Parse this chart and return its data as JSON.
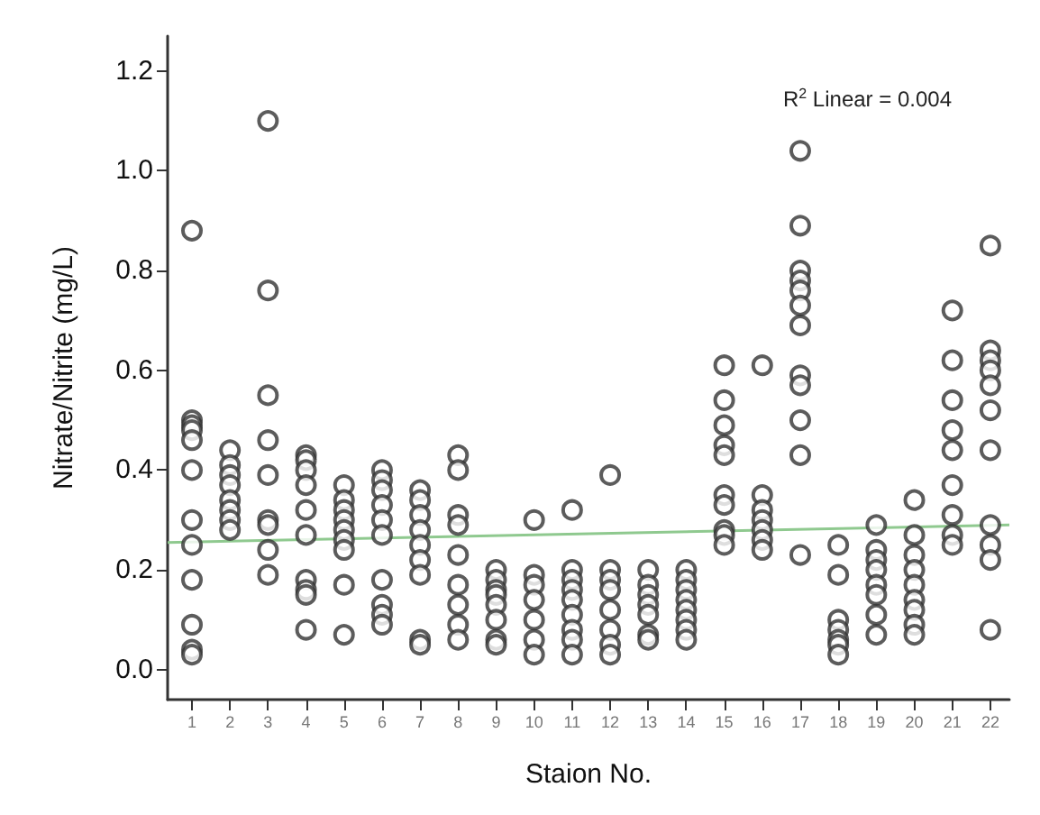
{
  "chart_data": {
    "type": "scatter",
    "xlabel": "Staion No.",
    "ylabel": "Nitrate/Nitrite (mg/L)",
    "annotations": [
      "R$^{2}$ Linear = 0.004"
    ],
    "xlim": [
      0.36,
      22.5
    ],
    "xticks": [
      1,
      2,
      3,
      4,
      5,
      6,
      7,
      8,
      9,
      10,
      11,
      12,
      13,
      14,
      15,
      16,
      17,
      18,
      19,
      20,
      21,
      22
    ],
    "ylim": [
      -0.06,
      1.27
    ],
    "yticks": [
      {
        "value": 0,
        "label": "0.0"
      },
      {
        "value": 0.2,
        "label": "0.2"
      },
      {
        "value": 0.4,
        "label": "0.4"
      },
      {
        "value": 0.6,
        "label": "0.6"
      },
      {
        "value": 0.8,
        "label": "0.8"
      },
      {
        "value": 1,
        "label": "1.0"
      },
      {
        "value": 1.2,
        "label": "1.2"
      }
    ],
    "marker": "circle",
    "series": [
      {
        "color": "#333333",
        "x": [
          1,
          1,
          1,
          1,
          1,
          1,
          1,
          1,
          1,
          1,
          1,
          1,
          2,
          2,
          2,
          2,
          2,
          2,
          2,
          2,
          3,
          3,
          3,
          3,
          3,
          3,
          3,
          3,
          3,
          4,
          4,
          4,
          4,
          4,
          4,
          4,
          4,
          4,
          4,
          5,
          5,
          5,
          5,
          5,
          5,
          5,
          5,
          5,
          6,
          6,
          6,
          6,
          6,
          6,
          6,
          6,
          6,
          6,
          7,
          7,
          7,
          7,
          7,
          7,
          7,
          7,
          7,
          8,
          8,
          8,
          8,
          8,
          8,
          8,
          8,
          8,
          9,
          9,
          9,
          9,
          9,
          9,
          9,
          9,
          10,
          10,
          10,
          10,
          10,
          10,
          10,
          11,
          11,
          11,
          11,
          11,
          11,
          11,
          11,
          11,
          12,
          12,
          12,
          12,
          12,
          12,
          12,
          12,
          13,
          13,
          13,
          13,
          13,
          13,
          13,
          14,
          14,
          14,
          14,
          14,
          14,
          14,
          14,
          15,
          15,
          15,
          15,
          15,
          15,
          15,
          15,
          15,
          15,
          16,
          16,
          16,
          16,
          16,
          16,
          16,
          17,
          17,
          17,
          17,
          17,
          17,
          17,
          17,
          17,
          17,
          17,
          17,
          18,
          18,
          18,
          18,
          18,
          18,
          18,
          19,
          19,
          19,
          19,
          19,
          19,
          19,
          19,
          20,
          20,
          20,
          20,
          20,
          20,
          20,
          20,
          20,
          21,
          21,
          21,
          21,
          21,
          21,
          21,
          21,
          21,
          22,
          22,
          22,
          22,
          22,
          22,
          22,
          22,
          22,
          22,
          22
        ],
        "values": [
          0.88,
          0.5,
          0.49,
          0.48,
          0.46,
          0.4,
          0.3,
          0.25,
          0.18,
          0.09,
          0.04,
          0.03,
          0.44,
          0.41,
          0.39,
          0.37,
          0.34,
          0.32,
          0.3,
          0.28,
          1.1,
          0.76,
          0.55,
          0.46,
          0.39,
          0.3,
          0.29,
          0.24,
          0.19,
          0.43,
          0.42,
          0.4,
          0.37,
          0.32,
          0.27,
          0.18,
          0.16,
          0.15,
          0.08,
          0.37,
          0.34,
          0.32,
          0.3,
          0.28,
          0.26,
          0.24,
          0.17,
          0.07,
          0.4,
          0.38,
          0.36,
          0.33,
          0.3,
          0.27,
          0.18,
          0.13,
          0.11,
          0.09,
          0.36,
          0.34,
          0.31,
          0.28,
          0.25,
          0.22,
          0.19,
          0.06,
          0.05,
          0.43,
          0.4,
          0.31,
          0.29,
          0.23,
          0.17,
          0.13,
          0.09,
          0.06,
          0.2,
          0.18,
          0.16,
          0.15,
          0.13,
          0.1,
          0.06,
          0.05,
          0.3,
          0.19,
          0.17,
          0.14,
          0.1,
          0.06,
          0.03,
          0.32,
          0.2,
          0.18,
          0.16,
          0.14,
          0.11,
          0.08,
          0.06,
          0.03,
          0.39,
          0.2,
          0.18,
          0.16,
          0.12,
          0.08,
          0.05,
          0.03,
          0.2,
          0.17,
          0.15,
          0.13,
          0.11,
          0.07,
          0.06,
          0.2,
          0.18,
          0.16,
          0.14,
          0.12,
          0.1,
          0.08,
          0.06,
          0.61,
          0.54,
          0.49,
          0.45,
          0.43,
          0.35,
          0.33,
          0.28,
          0.27,
          0.25,
          0.61,
          0.35,
          0.32,
          0.3,
          0.28,
          0.26,
          0.24,
          1.04,
          0.89,
          0.8,
          0.78,
          0.76,
          0.73,
          0.69,
          0.59,
          0.57,
          0.5,
          0.43,
          0.23,
          0.25,
          0.19,
          0.1,
          0.08,
          0.06,
          0.05,
          0.03,
          0.29,
          0.24,
          0.22,
          0.2,
          0.17,
          0.15,
          0.11,
          0.07,
          0.34,
          0.27,
          0.23,
          0.2,
          0.17,
          0.14,
          0.12,
          0.09,
          0.07,
          0.72,
          0.62,
          0.54,
          0.48,
          0.44,
          0.37,
          0.31,
          0.27,
          0.25,
          0.85,
          0.64,
          0.62,
          0.6,
          0.57,
          0.52,
          0.44,
          0.29,
          0.25,
          0.22,
          0.08
        ]
      },
      {
        "type": "line",
        "marker": "none",
        "color": "#8fc98f",
        "x": [
          0.36,
          22.5
        ],
        "values": [
          0.255,
          0.29
        ]
      }
    ]
  }
}
